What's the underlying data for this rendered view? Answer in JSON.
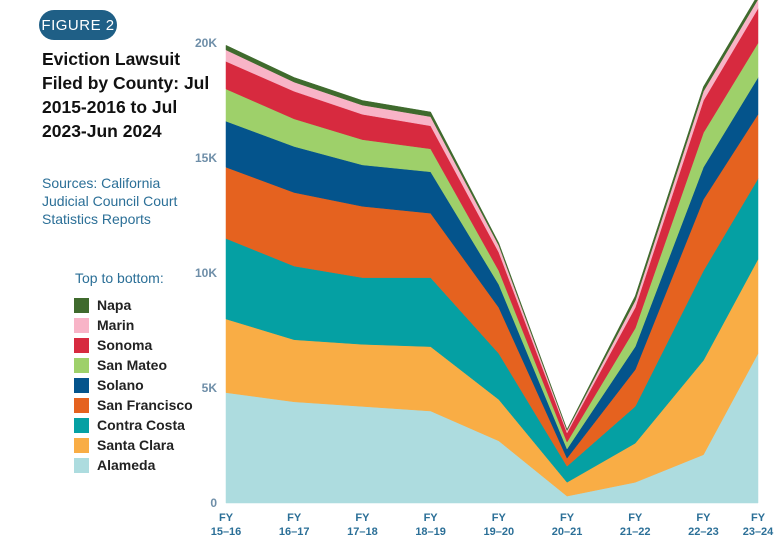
{
  "figure_label": "FIGURE 2",
  "title": "Eviction Lawsuit Filed by County: Jul 2015-2016 to Jul 2023-Jun 2024",
  "sources": "Sources: California Judicial Council Court Statistics Reports",
  "legend_heading": "Top to bottom:",
  "chart_data": {
    "type": "area",
    "stacked": true,
    "title": "Eviction Lawsuit Filed by County: Jul 2015-2016 to Jul 2023-Jun 2024",
    "ylim": [
      0,
      21000
    ],
    "y_ticks": [
      "0",
      "5K",
      "10K",
      "15K",
      "20K"
    ],
    "y_tick_values": [
      0,
      5000,
      10000,
      15000,
      20000
    ],
    "categories": [
      [
        "FY",
        "15–16"
      ],
      [
        "FY",
        "16–17"
      ],
      [
        "FY",
        "17–18"
      ],
      [
        "FY",
        "18–19"
      ],
      [
        "FY",
        "19–20"
      ],
      [
        "FY",
        "20–21"
      ],
      [
        "FY",
        "21–22"
      ],
      [
        "FY",
        "22–23"
      ],
      [
        "FY",
        "23–24"
      ]
    ],
    "x_positions": [
      0,
      1,
      2,
      3,
      4,
      5,
      6,
      7,
      7.8
    ],
    "series": [
      {
        "name": "Alameda",
        "color": "#addcdf",
        "values": [
          4800,
          4400,
          4200,
          4000,
          2700,
          300,
          900,
          2100,
          6500
        ]
      },
      {
        "name": "Santa Clara",
        "color": "#f9ad45",
        "values": [
          3200,
          2700,
          2700,
          2800,
          1800,
          600,
          1700,
          4100,
          4100
        ]
      },
      {
        "name": "Contra Costa",
        "color": "#05a0a3",
        "values": [
          3500,
          3200,
          2900,
          3000,
          2000,
          700,
          1600,
          3900,
          3500
        ]
      },
      {
        "name": "San Francisco",
        "color": "#e5621f",
        "values": [
          3100,
          3200,
          3100,
          2800,
          2000,
          350,
          1600,
          3100,
          2800
        ]
      },
      {
        "name": "Solano",
        "color": "#04548c",
        "values": [
          2000,
          2000,
          1800,
          1800,
          1000,
          400,
          1000,
          1400,
          1600
        ]
      },
      {
        "name": "San Mateo",
        "color": "#9ed06a",
        "values": [
          1400,
          1200,
          1100,
          1000,
          600,
          300,
          800,
          1500,
          1500
        ]
      },
      {
        "name": "Sonoma",
        "color": "#d72a3f",
        "values": [
          1200,
          1200,
          1100,
          1000,
          800,
          400,
          900,
          1400,
          1500
        ]
      },
      {
        "name": "Marin",
        "color": "#f8b4c7",
        "values": [
          500,
          400,
          400,
          400,
          300,
          100,
          300,
          400,
          400
        ]
      },
      {
        "name": "Napa",
        "color": "#3f6a2d",
        "values": [
          200,
          200,
          200,
          200,
          100,
          50,
          200,
          200,
          200
        ]
      }
    ]
  },
  "legend": [
    {
      "label": "Napa",
      "color": "#3f6a2d"
    },
    {
      "label": "Marin",
      "color": "#f8b4c7"
    },
    {
      "label": "Sonoma",
      "color": "#d72a3f"
    },
    {
      "label": "San Mateo",
      "color": "#9ed06a"
    },
    {
      "label": "Solano",
      "color": "#04548c"
    },
    {
      "label": "San Francisco",
      "color": "#e5621f"
    },
    {
      "label": "Contra Costa",
      "color": "#05a0a3"
    },
    {
      "label": "Santa Clara",
      "color": "#f9ad45"
    },
    {
      "label": "Alameda",
      "color": "#addcdf"
    }
  ]
}
